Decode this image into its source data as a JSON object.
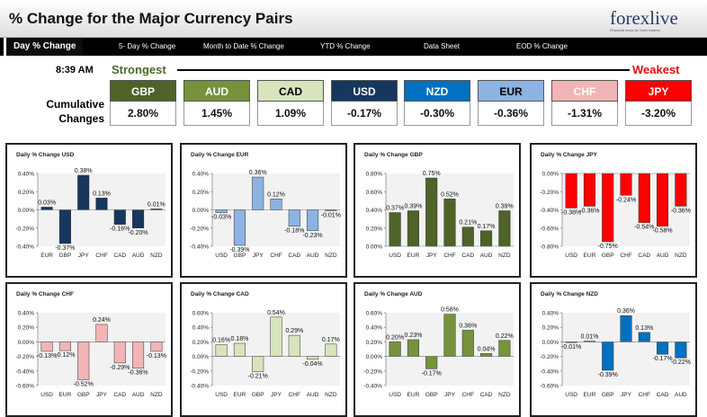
{
  "header": {
    "title": "% Change for the Major Currency Pairs",
    "logo_text": "forexlive",
    "logo_tagline": "Financial news for forex traders"
  },
  "tabs": [
    {
      "label": "Day % Change",
      "active": true
    },
    {
      "label": "5- Day % Change"
    },
    {
      "label": "Month to Date % Change"
    },
    {
      "label": "YTD % Change"
    },
    {
      "label": "Data Sheet"
    },
    {
      "label": "EOD % Change"
    }
  ],
  "summary": {
    "time": "8:39 AM",
    "strongest": "Strongest",
    "weakest": "Weakest",
    "cumulative_line1": "Cumulative",
    "cumulative_line2": "Changes",
    "currencies": [
      {
        "name": "GBP",
        "value": "2.80%",
        "bg": "#4f6228",
        "fg": "#ffffff"
      },
      {
        "name": "AUD",
        "value": "1.45%",
        "bg": "#76923c",
        "fg": "#ffffff"
      },
      {
        "name": "CAD",
        "value": "1.09%",
        "bg": "#d7e4bc",
        "fg": "#000000"
      },
      {
        "name": "USD",
        "value": "-0.17%",
        "bg": "#17375e",
        "fg": "#ffffff"
      },
      {
        "name": "NZD",
        "value": "-0.30%",
        "bg": "#0070c0",
        "fg": "#ffffff"
      },
      {
        "name": "EUR",
        "value": "-0.36%",
        "bg": "#8db3e2",
        "fg": "#000000"
      },
      {
        "name": "CHF",
        "value": "-1.31%",
        "bg": "#f2b5b5",
        "fg": "#ffffff"
      },
      {
        "name": "JPY",
        "value": "-3.20%",
        "bg": "#ff0000",
        "fg": "#ffffff"
      }
    ]
  },
  "chart_data": [
    {
      "type": "bar",
      "title": "Daily % Change USD",
      "color": "#17375e",
      "categories": [
        "EUR",
        "GBP",
        "JPY",
        "CHF",
        "CAD",
        "AUD",
        "NZD"
      ],
      "values": [
        0.03,
        -0.37,
        0.38,
        0.13,
        -0.16,
        -0.2,
        0.01
      ],
      "labels": [
        "0.03%",
        "-0.37%",
        "0.38%",
        "0.13%",
        "-0.16%",
        "-0.20%",
        "0.01%"
      ],
      "ylim": [
        -0.4,
        0.4
      ],
      "ticks": [
        "0.40%",
        "0.20%",
        "0.00%",
        "-0.20%",
        "-0.40%"
      ]
    },
    {
      "type": "bar",
      "title": "Daily % Change EUR",
      "color": "#8db3e2",
      "categories": [
        "USD",
        "GBP",
        "JPY",
        "CHF",
        "CAD",
        "AUD",
        "NZD"
      ],
      "values": [
        -0.03,
        -0.39,
        0.36,
        0.12,
        -0.18,
        -0.23,
        -0.01
      ],
      "labels": [
        "-0.03%",
        "-0.39%",
        "0.36%",
        "0.12%",
        "-0.18%",
        "-0.23%",
        "-0.01%"
      ],
      "ylim": [
        -0.4,
        0.4
      ],
      "ticks": [
        "0.40%",
        "0.20%",
        "0.00%",
        "-0.20%",
        "-0.40%"
      ]
    },
    {
      "type": "bar",
      "title": "Daily % Change GBP",
      "color": "#4f6228",
      "categories": [
        "USD",
        "EUR",
        "JPY",
        "CHF",
        "CAD",
        "AUD",
        "NZD"
      ],
      "values": [
        0.37,
        0.39,
        0.75,
        0.52,
        0.21,
        0.17,
        0.39
      ],
      "labels": [
        "0.37%",
        "0.39%",
        "0.75%",
        "0.52%",
        "0.21%",
        "0.17%",
        "0.39%"
      ],
      "ylim": [
        0,
        0.8
      ],
      "ticks": [
        "0.80%",
        "0.60%",
        "0.40%",
        "0.20%",
        "0.00%"
      ]
    },
    {
      "type": "bar",
      "title": "Daily % Change JPY",
      "color": "#ff0000",
      "categories": [
        "USD",
        "EUR",
        "GBP",
        "CHF",
        "CAD",
        "AUD",
        "NZD"
      ],
      "values": [
        -0.38,
        -0.36,
        -0.75,
        -0.24,
        -0.54,
        -0.58,
        -0.36
      ],
      "labels": [
        "-0.38%",
        "-0.36%",
        "-0.75%",
        "-0.24%",
        "-0.54%",
        "-0.58%",
        "-0.36%"
      ],
      "ylim": [
        -0.8,
        0
      ],
      "ticks": [
        "0.00%",
        "-0.20%",
        "-0.40%",
        "-0.60%",
        "-0.80%"
      ]
    },
    {
      "type": "bar",
      "title": "Daily % Change CHF",
      "color": "#f2b5b5",
      "categories": [
        "USD",
        "EUR",
        "GBP",
        "JPY",
        "CAD",
        "AUD",
        "NZD"
      ],
      "values": [
        -0.13,
        -0.12,
        -0.52,
        0.24,
        -0.29,
        -0.36,
        -0.13
      ],
      "labels": [
        "-0.13%",
        "-0.12%",
        "-0.52%",
        "0.24%",
        "-0.29%",
        "-0.36%",
        "-0.13%"
      ],
      "ylim": [
        -0.6,
        0.4
      ],
      "ticks": [
        "0.40%",
        "0.20%",
        "0.00%",
        "-0.20%",
        "-0.40%",
        "-0.60%"
      ]
    },
    {
      "type": "bar",
      "title": "Daily % Change CAD",
      "color": "#d7e4bc",
      "categories": [
        "USD",
        "EUR",
        "GBP",
        "JPY",
        "CHF",
        "AUD",
        "NZD"
      ],
      "values": [
        0.16,
        0.18,
        -0.21,
        0.54,
        0.29,
        -0.04,
        0.17
      ],
      "labels": [
        "0.16%",
        "0.18%",
        "-0.21%",
        "0.54%",
        "0.29%",
        "-0.04%",
        "0.17%"
      ],
      "ylim": [
        -0.4,
        0.6
      ],
      "ticks": [
        "0.60%",
        "0.40%",
        "0.20%",
        "0.00%",
        "-0.20%",
        "-0.40%"
      ]
    },
    {
      "type": "bar",
      "title": "Daily % Change AUD",
      "color": "#76923c",
      "categories": [
        "USD",
        "EUR",
        "GBP",
        "JPY",
        "CHF",
        "CAD",
        "NZD"
      ],
      "values": [
        0.2,
        0.23,
        -0.17,
        0.58,
        0.36,
        0.04,
        0.22
      ],
      "labels": [
        "0.20%",
        "0.23%",
        "-0.17%",
        "0.58%",
        "0.36%",
        "0.04%",
        "0.22%"
      ],
      "ylim": [
        -0.4,
        0.6
      ],
      "ticks": [
        "0.60%",
        "0.40%",
        "0.20%",
        "0.00%",
        "-0.20%",
        "-0.40%"
      ]
    },
    {
      "type": "bar",
      "title": "Daily % Change NZD",
      "color": "#0070c0",
      "categories": [
        "USD",
        "EUR",
        "GBP",
        "JPY",
        "CHF",
        "CAD",
        "AUD"
      ],
      "values": [
        -0.01,
        0.01,
        -0.39,
        0.36,
        0.13,
        -0.17,
        -0.22
      ],
      "labels": [
        "-0.01%",
        "0.01%",
        "-0.39%",
        "0.36%",
        "0.13%",
        "-0.17%",
        "-0.22%"
      ],
      "ylim": [
        -0.6,
        0.4
      ],
      "ticks": [
        "0.40%",
        "0.20%",
        "0.00%",
        "-0.20%",
        "-0.40%",
        "-0.60%"
      ]
    }
  ]
}
